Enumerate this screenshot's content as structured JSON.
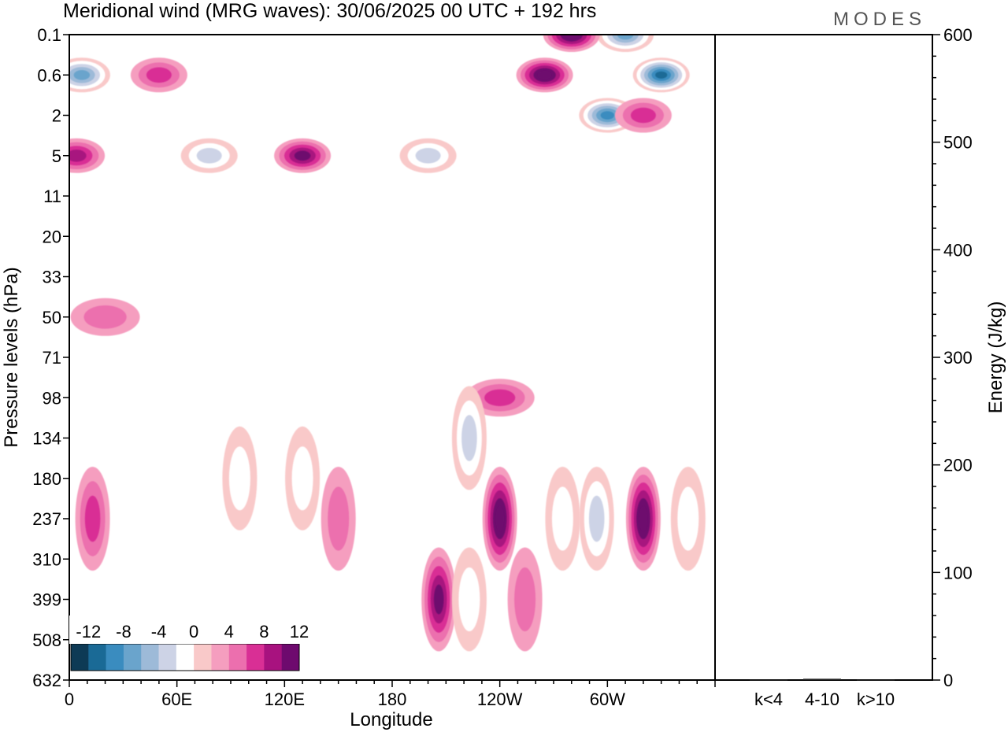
{
  "title": "Meridional wind (MRG waves):  30/06/2025  00 UTC  + 192 hrs",
  "logo": "MODES",
  "chart_data": [
    {
      "type": "heatmap",
      "title": "Meridional wind (MRG waves):  30/06/2025  00 UTC  + 192 hrs",
      "xlabel": "Longitude",
      "ylabel": "Pressure levels (hPa)",
      "x_ticks": [
        "0",
        "60E",
        "120E",
        "180",
        "120W",
        "60W"
      ],
      "x_tick_lon": [
        0,
        60,
        120,
        180,
        240,
        300
      ],
      "xlim": [
        0,
        360
      ],
      "y_ticks": [
        "0.1",
        "0.6",
        "2",
        "5",
        "11",
        "20",
        "33",
        "50",
        "71",
        "98",
        "134",
        "180",
        "237",
        "310",
        "399",
        "508",
        "632"
      ],
      "colorbar": {
        "labels": [
          "-12",
          "-8",
          "-4",
          "0",
          "4",
          "8",
          "12"
        ],
        "levels": [
          -14,
          -12,
          -10,
          -8,
          -6,
          -4,
          -2,
          2,
          4,
          6,
          8,
          10,
          12,
          14
        ],
        "colors": [
          "#0d3a55",
          "#1a6a96",
          "#3a8cbf",
          "#6aa4cc",
          "#9dbad8",
          "#cdd3e6",
          "#ffffff",
          "#f9c9c9",
          "#f59ebf",
          "#ec6fae",
          "#d92f95",
          "#a8127f",
          "#6e0a6e"
        ]
      },
      "features": [
        {
          "lon": 7,
          "level": "0.6",
          "value": -10
        },
        {
          "lon": 330,
          "level": "0.6",
          "value": -14
        },
        {
          "lon": 310,
          "level": "0.1",
          "value": -10
        },
        {
          "lon": 300,
          "level": "2",
          "value": -12
        },
        {
          "lon": 265,
          "level": "0.6",
          "value": 13
        },
        {
          "lon": 280,
          "level": "0.1",
          "value": 12
        },
        {
          "lon": 320,
          "level": "2",
          "value": 6
        },
        {
          "lon": 50,
          "level": "0.6",
          "value": 7
        },
        {
          "lon": 130,
          "level": "5",
          "value": 10
        },
        {
          "lon": 78,
          "level": "5",
          "value": -7
        },
        {
          "lon": 4,
          "level": "5",
          "value": 8
        },
        {
          "lon": 200,
          "level": "5",
          "value": -6
        },
        {
          "lon": 20,
          "level": "50",
          "value": 5
        },
        {
          "lon": 240,
          "level": "98",
          "value": 6
        },
        {
          "lon": 223,
          "level": "134",
          "value": -7
        },
        {
          "lon": 240,
          "level": "237",
          "value": 12
        },
        {
          "lon": 206,
          "level": "399",
          "value": 10
        },
        {
          "lon": 320,
          "level": "237",
          "value": 13
        },
        {
          "lon": 13,
          "level": "237",
          "value": 6
        },
        {
          "lon": 95,
          "level": "180",
          "value": -5
        },
        {
          "lon": 130,
          "level": "180",
          "value": -5
        },
        {
          "lon": 150,
          "level": "237",
          "value": 4
        },
        {
          "lon": 294,
          "level": "237",
          "value": -6
        },
        {
          "lon": 275,
          "level": "237",
          "value": -5
        },
        {
          "lon": 345,
          "level": "237",
          "value": -5
        },
        {
          "lon": 254,
          "level": "399",
          "value": 5
        },
        {
          "lon": 223,
          "level": "399",
          "value": -5
        }
      ]
    },
    {
      "type": "bar",
      "ylabel": "Energy (J/kg)",
      "categories": [
        "k<4",
        "4-10",
        "k>10"
      ],
      "values": [
        0.3,
        1.2,
        0.3
      ],
      "ylim": [
        0,
        600
      ],
      "y_ticks": [
        "0",
        "100",
        "200",
        "300",
        "400",
        "500",
        "600"
      ]
    }
  ]
}
